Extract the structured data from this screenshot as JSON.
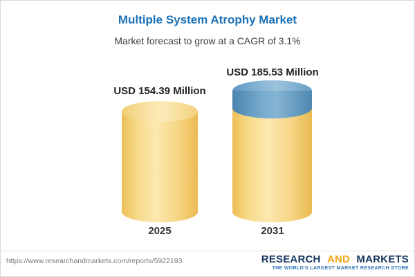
{
  "header": {
    "title": "Multiple System Atrophy Market",
    "subtitle": "Market forecast to grow at a CAGR of 3.1%"
  },
  "chart_data": {
    "type": "bar",
    "title": "Multiple System Atrophy Market",
    "subtitle": "Market forecast to grow at a CAGR of 3.1%",
    "categories": [
      "2025",
      "2031"
    ],
    "values": [
      154.39,
      185.53
    ],
    "unit": "USD Million",
    "value_labels": [
      "USD 154.39 Million",
      "USD 185.53 Million"
    ],
    "cagr_pct": 3.1,
    "colors": {
      "bar_body": "#f6cf72",
      "bar_top": "#f9e2a2",
      "growth_body": "#5f98c1",
      "growth_top": "#8db9d8",
      "title_text": "#1a70b8"
    }
  },
  "footer": {
    "url": "https://www.researchandmarkets.com/reports/5922193",
    "logo": {
      "research": "RESEARCH",
      "and": "AND",
      "markets": "MARKETS",
      "tagline": "THE WORLD'S LARGEST MARKET RESEARCH STORE"
    }
  }
}
